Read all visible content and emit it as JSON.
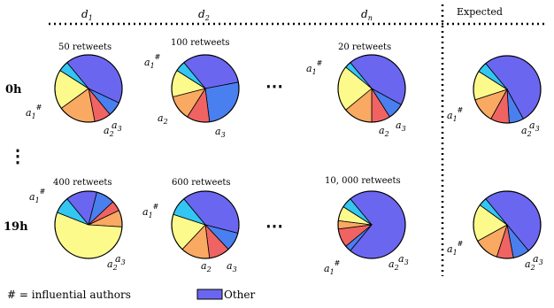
{
  "colors": {
    "other": "#6b66f0",
    "cyan": "#33c6f2",
    "blue": "#4a7ff0",
    "red": "#f06363",
    "orange": "#f9a962",
    "yellow": "#fdfa8c",
    "edge": "#000000"
  },
  "header": {
    "columns": [
      {
        "main": "d",
        "sub": "1"
      },
      {
        "main": "d",
        "sub": "2"
      },
      {
        "main": "d",
        "sub": "n"
      }
    ],
    "expected": "Expected"
  },
  "rows": [
    {
      "label": "0h"
    },
    {
      "label": "19h"
    }
  ],
  "vertical_dots": "⋮",
  "horizontal_dots": "⋯",
  "retweets": {
    "r0c0": "50 retweets",
    "r0c1": "100 retweets",
    "r0c2": "20 retweets",
    "r1c0": "400 retweets",
    "r1c1": "600 retweets",
    "r1c2": "10, 000 retweets"
  },
  "annotations": {
    "a": "a",
    "sub1": "1",
    "sub2": "2",
    "sub3": "3",
    "hash": "#"
  },
  "legend": {
    "influential": "# = influential authors",
    "other": "Other"
  },
  "pies": [
    {
      "id": "r0c0",
      "slices": [
        {
          "color": "other",
          "value": 0.43
        },
        {
          "color": "blue",
          "value": 0.07
        },
        {
          "color": "red",
          "value": 0.08
        },
        {
          "color": "orange",
          "value": 0.18
        },
        {
          "color": "yellow",
          "value": 0.19
        },
        {
          "color": "cyan",
          "value": 0.05
        }
      ]
    },
    {
      "id": "r0c1",
      "slices": [
        {
          "color": "other",
          "value": 0.33
        },
        {
          "color": "blue",
          "value": 0.26
        },
        {
          "color": "red",
          "value": 0.11
        },
        {
          "color": "orange",
          "value": 0.12
        },
        {
          "color": "yellow",
          "value": 0.13
        },
        {
          "color": "cyan",
          "value": 0.05
        }
      ]
    },
    {
      "id": "r0c2",
      "slices": [
        {
          "color": "other",
          "value": 0.44
        },
        {
          "color": "blue",
          "value": 0.08
        },
        {
          "color": "red",
          "value": 0.09
        },
        {
          "color": "orange",
          "value": 0.14
        },
        {
          "color": "yellow",
          "value": 0.22
        },
        {
          "color": "cyan",
          "value": 0.03
        }
      ]
    },
    {
      "id": "r0e",
      "slices": [
        {
          "color": "other",
          "value": 0.53
        },
        {
          "color": "blue",
          "value": 0.07
        },
        {
          "color": "red",
          "value": 0.09
        },
        {
          "color": "orange",
          "value": 0.12
        },
        {
          "color": "yellow",
          "value": 0.14
        },
        {
          "color": "cyan",
          "value": 0.05
        }
      ]
    },
    {
      "id": "r1c0",
      "slices": [
        {
          "color": "other",
          "value": 0.15
        },
        {
          "color": "blue",
          "value": 0.09
        },
        {
          "color": "red",
          "value": 0.05
        },
        {
          "color": "orange",
          "value": 0.08
        },
        {
          "color": "yellow",
          "value": 0.55
        },
        {
          "color": "cyan",
          "value": 0.08
        }
      ]
    },
    {
      "id": "r1c1",
      "slices": [
        {
          "color": "other",
          "value": 0.4
        },
        {
          "color": "blue",
          "value": 0.09
        },
        {
          "color": "red",
          "value": 0.1
        },
        {
          "color": "orange",
          "value": 0.14
        },
        {
          "color": "yellow",
          "value": 0.18
        },
        {
          "color": "cyan",
          "value": 0.09
        }
      ]
    },
    {
      "id": "r1c2",
      "slices": [
        {
          "color": "other",
          "value": 0.72
        },
        {
          "color": "blue",
          "value": 0.03
        },
        {
          "color": "red",
          "value": 0.09
        },
        {
          "color": "orange",
          "value": 0.04
        },
        {
          "color": "yellow",
          "value": 0.07
        },
        {
          "color": "cyan",
          "value": 0.05
        }
      ]
    },
    {
      "id": "r1e",
      "slices": [
        {
          "color": "other",
          "value": 0.5
        },
        {
          "color": "blue",
          "value": 0.08
        },
        {
          "color": "red",
          "value": 0.08
        },
        {
          "color": "orange",
          "value": 0.12
        },
        {
          "color": "yellow",
          "value": 0.18
        },
        {
          "color": "cyan",
          "value": 0.04
        }
      ]
    }
  ]
}
